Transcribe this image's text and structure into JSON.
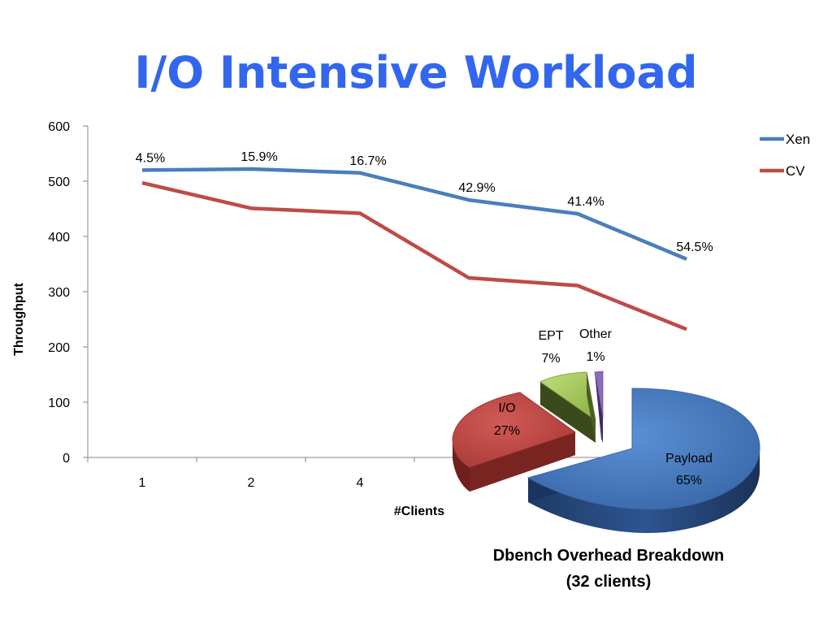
{
  "title": "I/O Intensive Workload",
  "chart_data": [
    {
      "type": "line",
      "categories": [
        "1",
        "2",
        "4",
        "",
        "",
        ""
      ],
      "ylim": [
        0,
        600
      ],
      "yticks": [
        0,
        100,
        200,
        300,
        400,
        500,
        600
      ],
      "xlabel": "#Clients",
      "ylabel": "Throughput",
      "legend_position": "top-right",
      "series": [
        {
          "name": "Xen",
          "color": "#4a7ebb",
          "values": [
            520,
            522,
            515,
            466,
            441,
            359
          ],
          "labels": [
            "4.5%",
            "15.9%",
            "16.7%",
            "42.9%",
            "41.4%",
            "54.5%"
          ]
        },
        {
          "name": "CV",
          "color": "#be4b48",
          "values": [
            497,
            451,
            442,
            325,
            311,
            232
          ]
        }
      ]
    },
    {
      "type": "pie",
      "title": "Dbench Overhead Breakdown",
      "subtitle": "(32 clients)",
      "slices": [
        {
          "name": "Payload",
          "value": 65,
          "label": "65%",
          "color": "#4f81bd"
        },
        {
          "name": "I/O",
          "value": 27,
          "label": "27%",
          "color": "#c0504d"
        },
        {
          "name": "EPT",
          "value": 7,
          "label": "7%",
          "color": "#9bbb59"
        },
        {
          "name": "Other",
          "value": 1,
          "label": "1%",
          "color": "#8064a2"
        }
      ]
    }
  ]
}
